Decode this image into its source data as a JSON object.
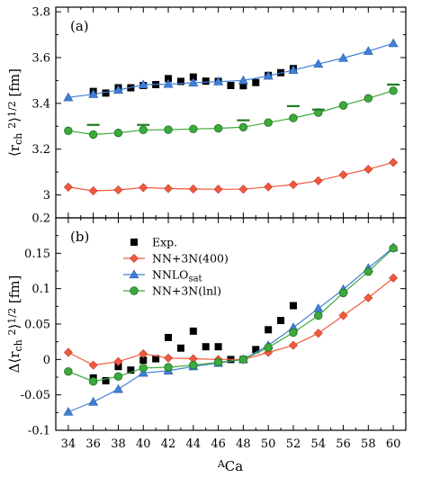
{
  "figure": {
    "xlabel_sup": "A",
    "xlabel_main": "Ca",
    "x_ticks": [
      34,
      36,
      38,
      40,
      42,
      44,
      46,
      48,
      50,
      52,
      54,
      56,
      58,
      60
    ]
  },
  "chart_data": [
    {
      "type": "line",
      "panel_label": "(a)",
      "ylabel": "⟨r_ch²⟩^1/2 [fm]",
      "ylim": [
        2.9,
        3.82
      ],
      "y_ticks": [
        3.0,
        3.2,
        3.4,
        3.6,
        3.8
      ],
      "y_tick_labels": [
        "3",
        "3.2",
        "3.4",
        "3.6",
        "3.8"
      ],
      "xlim": [
        33,
        61
      ],
      "colors": {
        "exp": "#000000",
        "nn400": "#f05a3c",
        "nnlo": "#3f7fd8",
        "lnl": "#3caa3c"
      },
      "series": [
        {
          "key": "exp",
          "marker": "square",
          "line": false,
          "x": [
            36,
            37,
            38,
            39,
            40,
            41,
            42,
            43,
            44,
            45,
            46,
            47,
            48,
            49,
            50,
            51,
            52
          ],
          "y": [
            3.452,
            3.445,
            3.468,
            3.468,
            3.478,
            3.482,
            3.508,
            3.496,
            3.515,
            3.497,
            3.496,
            3.478,
            3.477,
            3.491,
            3.522,
            3.534,
            3.552
          ]
        },
        {
          "key": "nn400",
          "marker": "diamond",
          "line": true,
          "x": [
            34,
            36,
            38,
            40,
            42,
            44,
            46,
            48,
            50,
            52,
            54,
            56,
            58,
            60
          ],
          "y": [
            3.034,
            3.018,
            3.022,
            3.032,
            3.028,
            3.026,
            3.025,
            3.025,
            3.035,
            3.045,
            3.062,
            3.088,
            3.112,
            3.142
          ]
        },
        {
          "key": "nnlo",
          "marker": "triangle",
          "line": true,
          "x": [
            34,
            36,
            38,
            40,
            42,
            44,
            46,
            48,
            50,
            52,
            54,
            56,
            58,
            60
          ],
          "y": [
            3.426,
            3.44,
            3.458,
            3.482,
            3.484,
            3.49,
            3.495,
            3.5,
            3.52,
            3.545,
            3.572,
            3.598,
            3.628,
            3.662
          ]
        },
        {
          "key": "lnl",
          "marker": "circle",
          "line": true,
          "x": [
            34,
            36,
            38,
            40,
            42,
            44,
            46,
            48,
            50,
            52,
            54,
            56,
            58,
            60
          ],
          "y": [
            3.28,
            3.264,
            3.271,
            3.284,
            3.285,
            3.288,
            3.291,
            3.296,
            3.316,
            3.336,
            3.36,
            3.391,
            3.422,
            3.455
          ]
        },
        {
          "key": "lnl",
          "marker": "dash",
          "line": false,
          "x": [
            36,
            40,
            48,
            52,
            54,
            60
          ],
          "y": [
            3.306,
            3.306,
            3.326,
            3.388,
            3.373,
            3.482
          ]
        }
      ]
    },
    {
      "type": "line",
      "panel_label": "(b)",
      "ylabel": "Δ⟨r_ch²⟩^1/2 [fm]",
      "ylim": [
        -0.1,
        0.2
      ],
      "y_ticks": [
        -0.1,
        -0.05,
        0,
        0.05,
        0.1,
        0.15,
        0.2
      ],
      "y_tick_labels": [
        "-0.1",
        "-0.05",
        "0",
        "0.05",
        "0.1",
        "0.15",
        "0.2"
      ],
      "xlim": [
        33,
        61
      ],
      "legend_placement": "top-left",
      "legend": [
        "Exp.",
        "NN+3N(400)",
        "NNLO",
        "NN+3N(lnl)"
      ],
      "legend_sub": [
        "",
        "",
        "sat",
        ""
      ],
      "series": [
        {
          "key": "exp",
          "marker": "square",
          "line": false,
          "x": [
            36,
            37,
            38,
            39,
            40,
            41,
            42,
            43,
            44,
            45,
            46,
            47,
            48,
            49,
            50,
            51,
            52
          ],
          "y": [
            -0.026,
            -0.03,
            -0.01,
            -0.015,
            -0.001,
            0.001,
            0.031,
            0.016,
            0.04,
            0.018,
            0.018,
            0.0,
            0.0,
            0.014,
            0.042,
            0.055,
            0.076
          ]
        },
        {
          "key": "nn400",
          "marker": "diamond",
          "line": true,
          "x": [
            34,
            36,
            38,
            40,
            42,
            44,
            46,
            48,
            50,
            52,
            54,
            56,
            58,
            60
          ],
          "y": [
            0.01,
            -0.008,
            -0.003,
            0.008,
            0.002,
            0.001,
            0.0,
            0.0,
            0.01,
            0.02,
            0.037,
            0.062,
            0.087,
            0.115
          ]
        },
        {
          "key": "nnlo",
          "marker": "triangle",
          "line": true,
          "x": [
            34,
            36,
            38,
            40,
            42,
            44,
            46,
            48,
            50,
            52,
            54,
            56,
            58,
            60
          ],
          "y": [
            -0.074,
            -0.06,
            -0.042,
            -0.019,
            -0.016,
            -0.01,
            -0.005,
            0.0,
            0.02,
            0.045,
            0.072,
            0.099,
            0.129,
            0.158
          ]
        },
        {
          "key": "lnl",
          "marker": "circle",
          "line": true,
          "x": [
            34,
            36,
            38,
            40,
            42,
            44,
            46,
            48,
            50,
            52,
            54,
            56,
            58,
            60
          ],
          "y": [
            -0.017,
            -0.031,
            -0.024,
            -0.012,
            -0.011,
            -0.008,
            -0.004,
            0.0,
            0.017,
            0.038,
            0.062,
            0.094,
            0.124,
            0.157
          ]
        }
      ]
    }
  ]
}
